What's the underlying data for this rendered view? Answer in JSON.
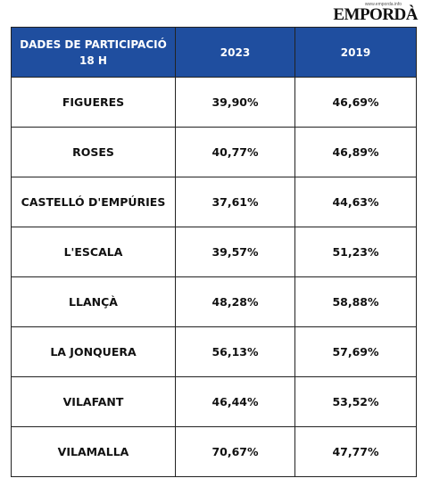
{
  "header": {
    "site": "www.emporda.info",
    "logo": "EMPORDÀ"
  },
  "table": {
    "columns": [
      "DADES DE PARTICIPACIÓ 18 H",
      "2023",
      "2019"
    ],
    "rows": [
      [
        "FIGUERES",
        "39,90%",
        "46,69%"
      ],
      [
        "ROSES",
        "40,77%",
        "46,89%"
      ],
      [
        "CASTELLÓ D'EMPÚRIES",
        "37,61%",
        "44,63%"
      ],
      [
        "L'ESCALA",
        "39,57%",
        "51,23%"
      ],
      [
        "LLANÇÀ",
        "48,28%",
        "58,88%"
      ],
      [
        "LA JONQUERA",
        "56,13%",
        "57,69%"
      ],
      [
        "VILAFANT",
        "46,44%",
        "53,52%"
      ],
      [
        "VILAMALLA",
        "70,67%",
        "47,77%"
      ]
    ]
  }
}
